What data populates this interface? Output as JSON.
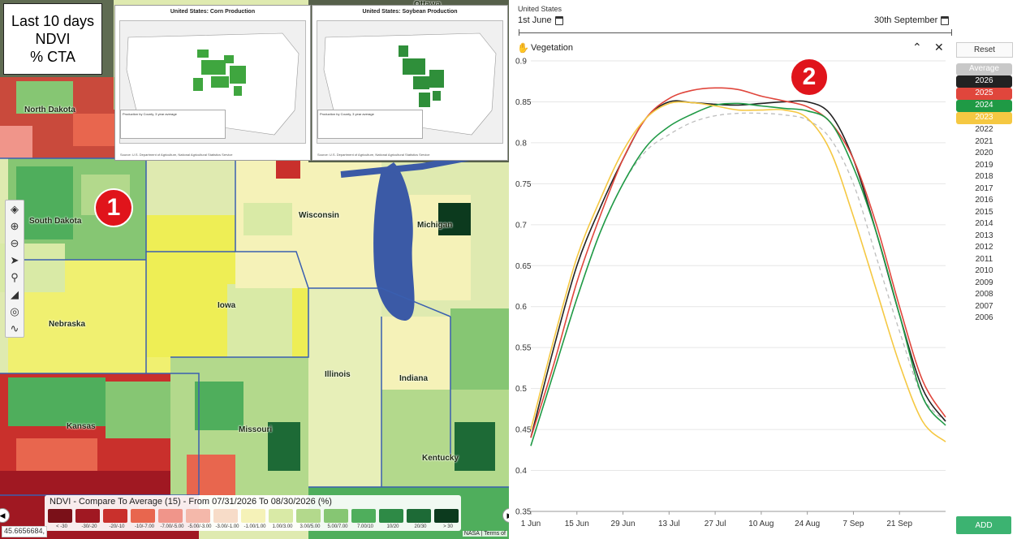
{
  "map": {
    "info_lines": [
      "Last 10 days",
      "NDVI",
      "% CTA"
    ],
    "badge": "1",
    "inset_corn": {
      "title": "United States: Corn Production",
      "legend_title": "Production by County, 3 year average",
      "source": "Source: U.S. Department of Agriculture, National Agricultural Statistics Service"
    },
    "inset_soy": {
      "title": "United States: Soybean Production",
      "legend_title": "Production by County, 3 year average",
      "source": "Source: U.S. Department of Agriculture, National Agricultural Statistics Service"
    },
    "state_labels": [
      "North Dakota",
      "South Dakota",
      "Nebraska",
      "Kansas",
      "Iowa",
      "Wisconsin",
      "Michigan",
      "Illinois",
      "Indiana",
      "Missouri",
      "Kentucky",
      "Ottawa"
    ],
    "legend": {
      "title": "NDVI - Compare To Average (15) - From 07/31/2026 To 08/30/2026 (%)",
      "labels": [
        "< -30",
        "-30/-20",
        "-20/-10",
        "-10/-7.00",
        "-7.00/-5.00",
        "-5.00/-3.00",
        "-3.00/-1.00",
        "-1.00/1.00",
        "1.00/3.00",
        "3.00/5.00",
        "5.00/7.00",
        "7.00/10",
        "10/20",
        "20/30",
        "> 30"
      ],
      "colors": [
        "#7a1018",
        "#a01822",
        "#c9302c",
        "#e8664e",
        "#f0958a",
        "#f4b8aa",
        "#f7dcc8",
        "#f5f2b8",
        "#d9eaa6",
        "#b3d98c",
        "#86c673",
        "#4fae5c",
        "#2e8a46",
        "#1d6a36",
        "#0c3a1e"
      ]
    },
    "coordinate": "45.6656684,",
    "attribution": "NASA | Terms of"
  },
  "chart": {
    "region": "United States",
    "start_date": "1st June",
    "end_date": "30th September",
    "panel_title": "Vegetation",
    "badge": "2",
    "reset_label": "Reset",
    "add_label": "ADD",
    "years": [
      {
        "label": "Average",
        "color": "#c8c8c8",
        "tag": true
      },
      {
        "label": "2026",
        "color": "#222222",
        "tag": true
      },
      {
        "label": "2025",
        "color": "#e0463c",
        "tag": true
      },
      {
        "label": "2024",
        "color": "#1f9a45",
        "tag": true
      },
      {
        "label": "2023",
        "color": "#f5c842",
        "tag": true
      },
      {
        "label": "2022",
        "tag": false
      },
      {
        "label": "2021",
        "tag": false
      },
      {
        "label": "2020",
        "tag": false
      },
      {
        "label": "2019",
        "tag": false
      },
      {
        "label": "2018",
        "tag": false
      },
      {
        "label": "2017",
        "tag": false
      },
      {
        "label": "2016",
        "tag": false
      },
      {
        "label": "2015",
        "tag": false
      },
      {
        "label": "2014",
        "tag": false
      },
      {
        "label": "2013",
        "tag": false
      },
      {
        "label": "2012",
        "tag": false
      },
      {
        "label": "2011",
        "tag": false
      },
      {
        "label": "2010",
        "tag": false
      },
      {
        "label": "2009",
        "tag": false
      },
      {
        "label": "2008",
        "tag": false
      },
      {
        "label": "2007",
        "tag": false
      },
      {
        "label": "2006",
        "tag": false
      }
    ]
  },
  "chart_data": {
    "type": "line",
    "title": "Vegetation",
    "x": [
      "1 Jun",
      "8 Jun",
      "15 Jun",
      "22 Jun",
      "29 Jun",
      "6 Jul",
      "13 Jul",
      "20 Jul",
      "27 Jul",
      "3 Aug",
      "10 Aug",
      "17 Aug",
      "24 Aug",
      "31 Aug",
      "7 Sep",
      "14 Sep",
      "21 Sep",
      "28 Sep",
      "1 Oct"
    ],
    "x_ticks": [
      "1 Jun",
      "15 Jun",
      "29 Jun",
      "13 Jul",
      "27 Jul",
      "10 Aug",
      "24 Aug",
      "7 Sep",
      "21 Sep"
    ],
    "ylim": [
      0.35,
      0.9
    ],
    "y_ticks": [
      "0.35",
      "0.4",
      "0.45",
      "0.5",
      "0.55",
      "0.6",
      "0.65",
      "0.7",
      "0.75",
      "0.8",
      "0.85",
      "0.9"
    ],
    "series": [
      {
        "name": "Average",
        "color": "#bdbdbd",
        "dashed": true,
        "values": [
          0.43,
          0.52,
          0.61,
          0.69,
          0.75,
          0.79,
          0.81,
          0.825,
          0.833,
          0.836,
          0.836,
          0.834,
          0.828,
          0.805,
          0.75,
          0.66,
          0.57,
          0.49,
          0.46
        ]
      },
      {
        "name": "2026",
        "color": "#222222",
        "values": [
          0.44,
          0.55,
          0.65,
          0.72,
          0.78,
          0.83,
          0.85,
          0.849,
          0.847,
          0.846,
          0.848,
          0.85,
          0.85,
          0.835,
          0.78,
          0.69,
          0.59,
          0.5,
          0.46
        ]
      },
      {
        "name": "2025",
        "color": "#e0463c",
        "values": [
          0.44,
          0.53,
          0.63,
          0.71,
          0.78,
          0.83,
          0.854,
          0.864,
          0.867,
          0.865,
          0.857,
          0.851,
          0.844,
          0.825,
          0.78,
          0.7,
          0.6,
          0.51,
          0.465
        ]
      },
      {
        "name": "2024",
        "color": "#1f9a45",
        "values": [
          0.43,
          0.52,
          0.61,
          0.69,
          0.75,
          0.795,
          0.82,
          0.835,
          0.846,
          0.848,
          0.845,
          0.842,
          0.839,
          0.825,
          0.77,
          0.69,
          0.59,
          0.49,
          0.455
        ]
      },
      {
        "name": "2023",
        "color": "#f5c842",
        "values": [
          0.45,
          0.56,
          0.66,
          0.73,
          0.79,
          0.83,
          0.848,
          0.849,
          0.845,
          0.84,
          0.84,
          0.84,
          0.83,
          0.79,
          0.71,
          0.62,
          0.53,
          0.46,
          0.435
        ]
      }
    ]
  }
}
